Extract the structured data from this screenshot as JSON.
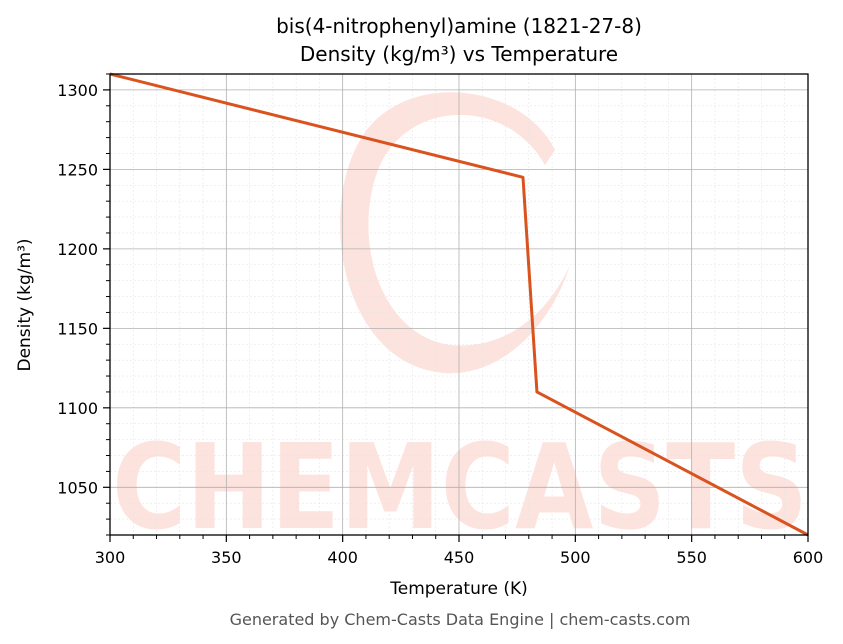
{
  "chart_data": {
    "type": "line",
    "title_line1": "bis(4-nitrophenyl)amine (1821-27-8)",
    "title_line2": "Density (kg/m³) vs Temperature",
    "xlabel": "Temperature (K)",
    "ylabel": "Density (kg/m³)",
    "xlim": [
      300,
      600
    ],
    "ylim": [
      1020,
      1310
    ],
    "x_ticks": [
      300,
      350,
      400,
      450,
      500,
      550,
      600
    ],
    "y_ticks": [
      1050,
      1100,
      1150,
      1200,
      1250,
      1300
    ],
    "grid": true,
    "series": [
      {
        "color": "#d9531e",
        "x": [
          300,
          477.5,
          483.5,
          600
        ],
        "y": [
          1310,
          1245,
          1110,
          1020
        ]
      }
    ]
  },
  "watermark": {
    "text": "CHEMCASTS",
    "color": "#fde3de"
  },
  "footer": "Generated by Chem-Casts Data Engine | chem-casts.com"
}
